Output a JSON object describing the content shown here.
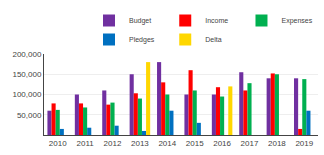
{
  "chart_data": {
    "type": "bar",
    "categories": [
      "2010",
      "2011",
      "2012",
      "2013",
      "2014",
      "2015",
      "2016",
      "2017",
      "2018",
      "2019"
    ],
    "series": [
      {
        "name": "Budget",
        "color": "#7030A0",
        "values": [
          60000,
          100000,
          110000,
          150000,
          180000,
          100000,
          100000,
          155000,
          140000,
          140000
        ]
      },
      {
        "name": "Income",
        "color": "#FF0000",
        "values": [
          78000,
          78000,
          75000,
          103000,
          130000,
          160000,
          118000,
          110000,
          152000,
          15000
        ]
      },
      {
        "name": "Expenses",
        "color": "#00B050",
        "values": [
          62000,
          68000,
          80000,
          90000,
          100000,
          110000,
          95000,
          128000,
          150000,
          138000
        ]
      },
      {
        "name": "Pledges",
        "color": "#0070C0",
        "values": [
          15000,
          18000,
          23000,
          10000,
          60000,
          30000,
          0,
          0,
          0,
          60000
        ]
      },
      {
        "name": "Delta",
        "color": "#FFD700",
        "values": [
          0,
          0,
          0,
          180000,
          0,
          0,
          120000,
          0,
          0,
          0
        ]
      }
    ],
    "ylim": [
      0,
      200000
    ],
    "yticks": [
      {
        "value": 50000,
        "label": "50,000"
      },
      {
        "value": 100000,
        "label": "100,000"
      },
      {
        "value": 150000,
        "label": "150,000"
      },
      {
        "value": 200000,
        "label": "200,000"
      }
    ],
    "grid": true,
    "legend": "upper right"
  }
}
